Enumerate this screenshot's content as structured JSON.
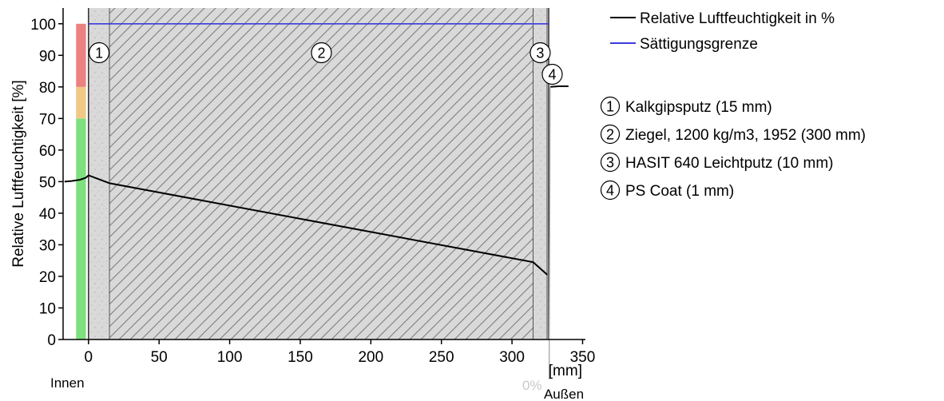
{
  "chart_data": {
    "type": "line",
    "xlabel": "[mm]",
    "ylabel": "Relative Luftfeuchtigkeit [%]",
    "xlim": [
      -18,
      352
    ],
    "ylim": [
      0,
      105
    ],
    "x_ticks": [
      0,
      50,
      100,
      150,
      200,
      250,
      300,
      350
    ],
    "y_ticks": [
      0,
      10,
      20,
      30,
      40,
      50,
      60,
      70,
      80,
      90,
      100
    ],
    "inside_label": "Innen",
    "outside_label": "Außen",
    "outside_zero_label": "0%",
    "series": [
      {
        "name": "Relative Luftfeuchtigkeit in %",
        "color": "#000000",
        "segments": [
          [
            [
              -17,
              50
            ],
            [
              -12,
              50.2
            ],
            [
              -6,
              50.6
            ],
            [
              -2,
              51.2
            ],
            [
              0,
              52
            ],
            [
              15,
              49.5
            ],
            [
              315,
              24.5
            ],
            [
              325,
              20.5
            ]
          ],
          [
            [
              327,
              80
            ],
            [
              333,
              80.2
            ],
            [
              340,
              80.2
            ]
          ]
        ]
      },
      {
        "name": "Sättigungsgrenze",
        "color": "#3b3bdc",
        "segments": [
          [
            [
              0,
              100
            ],
            [
              326,
              100
            ]
          ]
        ]
      }
    ],
    "comfort_bar": [
      {
        "from": 0,
        "to": 70,
        "color": "#7fe07f"
      },
      {
        "from": 70,
        "to": 80,
        "color": "#f0c987"
      },
      {
        "from": 80,
        "to": 100,
        "color": "#ec8181"
      }
    ],
    "layers": [
      {
        "num": "1",
        "name": "Kalkgipsputz (15 mm)",
        "from": 0,
        "to": 15,
        "fill": "#d9d9d9",
        "pattern": "dots"
      },
      {
        "num": "2",
        "name": "Ziegel, 1200 kg/m3, 1952 (300 mm)",
        "from": 15,
        "to": 315,
        "fill": "#d9d9d9",
        "pattern": "hatch"
      },
      {
        "num": "3",
        "name": "HASIT 640 Leichtputz (10 mm)",
        "from": 315,
        "to": 325,
        "fill": "#d9d9d9",
        "pattern": "dots"
      },
      {
        "num": "4",
        "name": "PS Coat (1 mm)",
        "from": 325,
        "to": 326,
        "fill": "#d9d9d9",
        "pattern": "none"
      }
    ]
  }
}
